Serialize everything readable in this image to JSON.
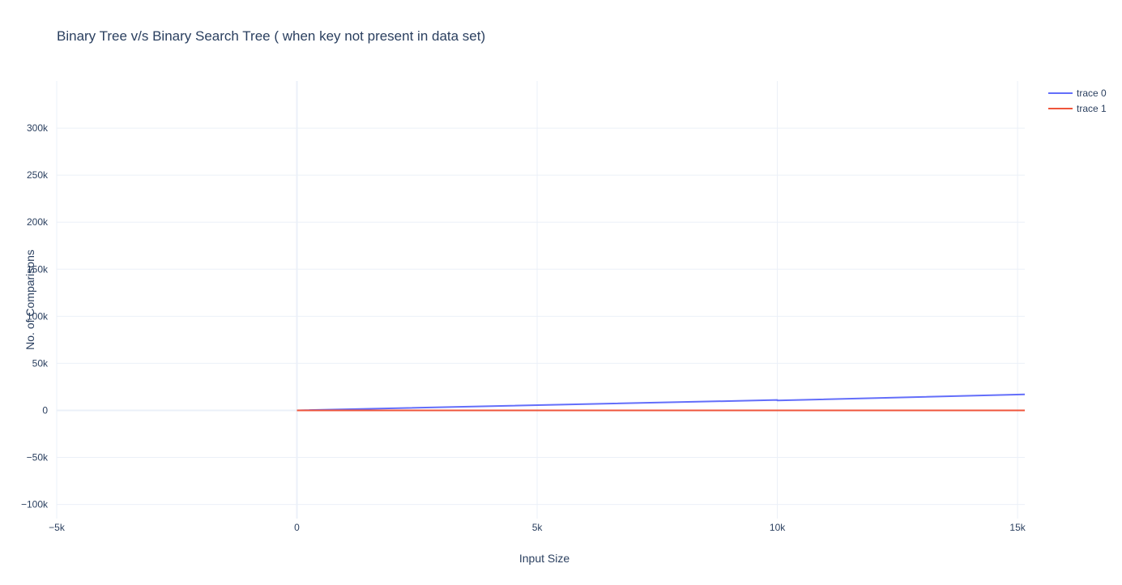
{
  "chart_data": {
    "type": "line",
    "title": "Binary Tree v/s Binary Search Tree ( when key not present in data set)",
    "xlabel": "Input Size",
    "ylabel": "No. of Comparisons",
    "xlim": [
      -5000,
      15150
    ],
    "ylim": [
      -115000,
      350000
    ],
    "x_ticks": [
      -5000,
      0,
      5000,
      10000,
      15000
    ],
    "x_tick_labels": [
      "−5k",
      "0",
      "5k",
      "10k",
      "15k"
    ],
    "y_ticks": [
      -100000,
      -50000,
      0,
      50000,
      100000,
      150000,
      200000,
      250000,
      300000
    ],
    "y_tick_labels": [
      "−100k",
      "−50k",
      "0",
      "50k",
      "100k",
      "150k",
      "200k",
      "250k",
      "300k"
    ],
    "grid": true,
    "legend_position": "top-right",
    "series": [
      {
        "name": "trace 0",
        "color": "#636efa",
        "x": [
          0,
          10000,
          10000,
          15150
        ],
        "y": [
          0,
          11000,
          10500,
          17000
        ]
      },
      {
        "name": "trace 1",
        "color": "#ef553b",
        "x": [
          0,
          15150
        ],
        "y": [
          0,
          0
        ]
      }
    ]
  }
}
